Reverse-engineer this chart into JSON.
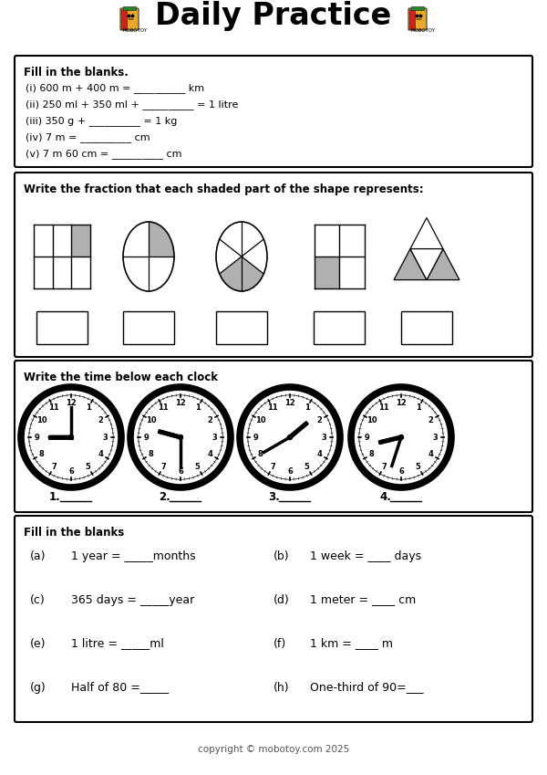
{
  "title": "Daily Practice",
  "bg_color": "#ffffff",
  "section1_title": "Fill in the blanks.",
  "section1_lines": [
    "(i) 600 m + 400 m = __________ km",
    "(ii) 250 ml + 350 ml + __________ = 1 litre",
    "(iii) 350 g + __________ = 1 kg",
    "(iv) 7 m = __________ cm",
    "(v) 7 m 60 cm = __________ cm"
  ],
  "section2_title": "Write the fraction that each shaded part of the shape represents:",
  "section3_title": "Write the time below each clock",
  "section4_title": "Fill in the blanks",
  "section4_left": [
    [
      "(a)",
      "1 year = _____months"
    ],
    [
      "(c)",
      "365 days = _____year"
    ],
    [
      "(e)",
      "1 litre = _____ml"
    ],
    [
      "(g)",
      "Half of 80 =_____"
    ]
  ],
  "section4_right": [
    [
      "(b)",
      "1 week = ____ days"
    ],
    [
      "(d)",
      "1 meter = ____ cm"
    ],
    [
      "(f)",
      "1 km = ____ m"
    ],
    [
      "(h)",
      "One-third of 90=___"
    ]
  ],
  "footer": "copyright © mobotoy.com 2025",
  "gray_color": "#b0b0b0",
  "clock_times": [
    {
      "hour": 9,
      "minute": 0
    },
    {
      "hour": 9,
      "minute": 30
    },
    {
      "hour": 1,
      "minute": 40
    },
    {
      "hour": 9,
      "minute": 30
    }
  ]
}
